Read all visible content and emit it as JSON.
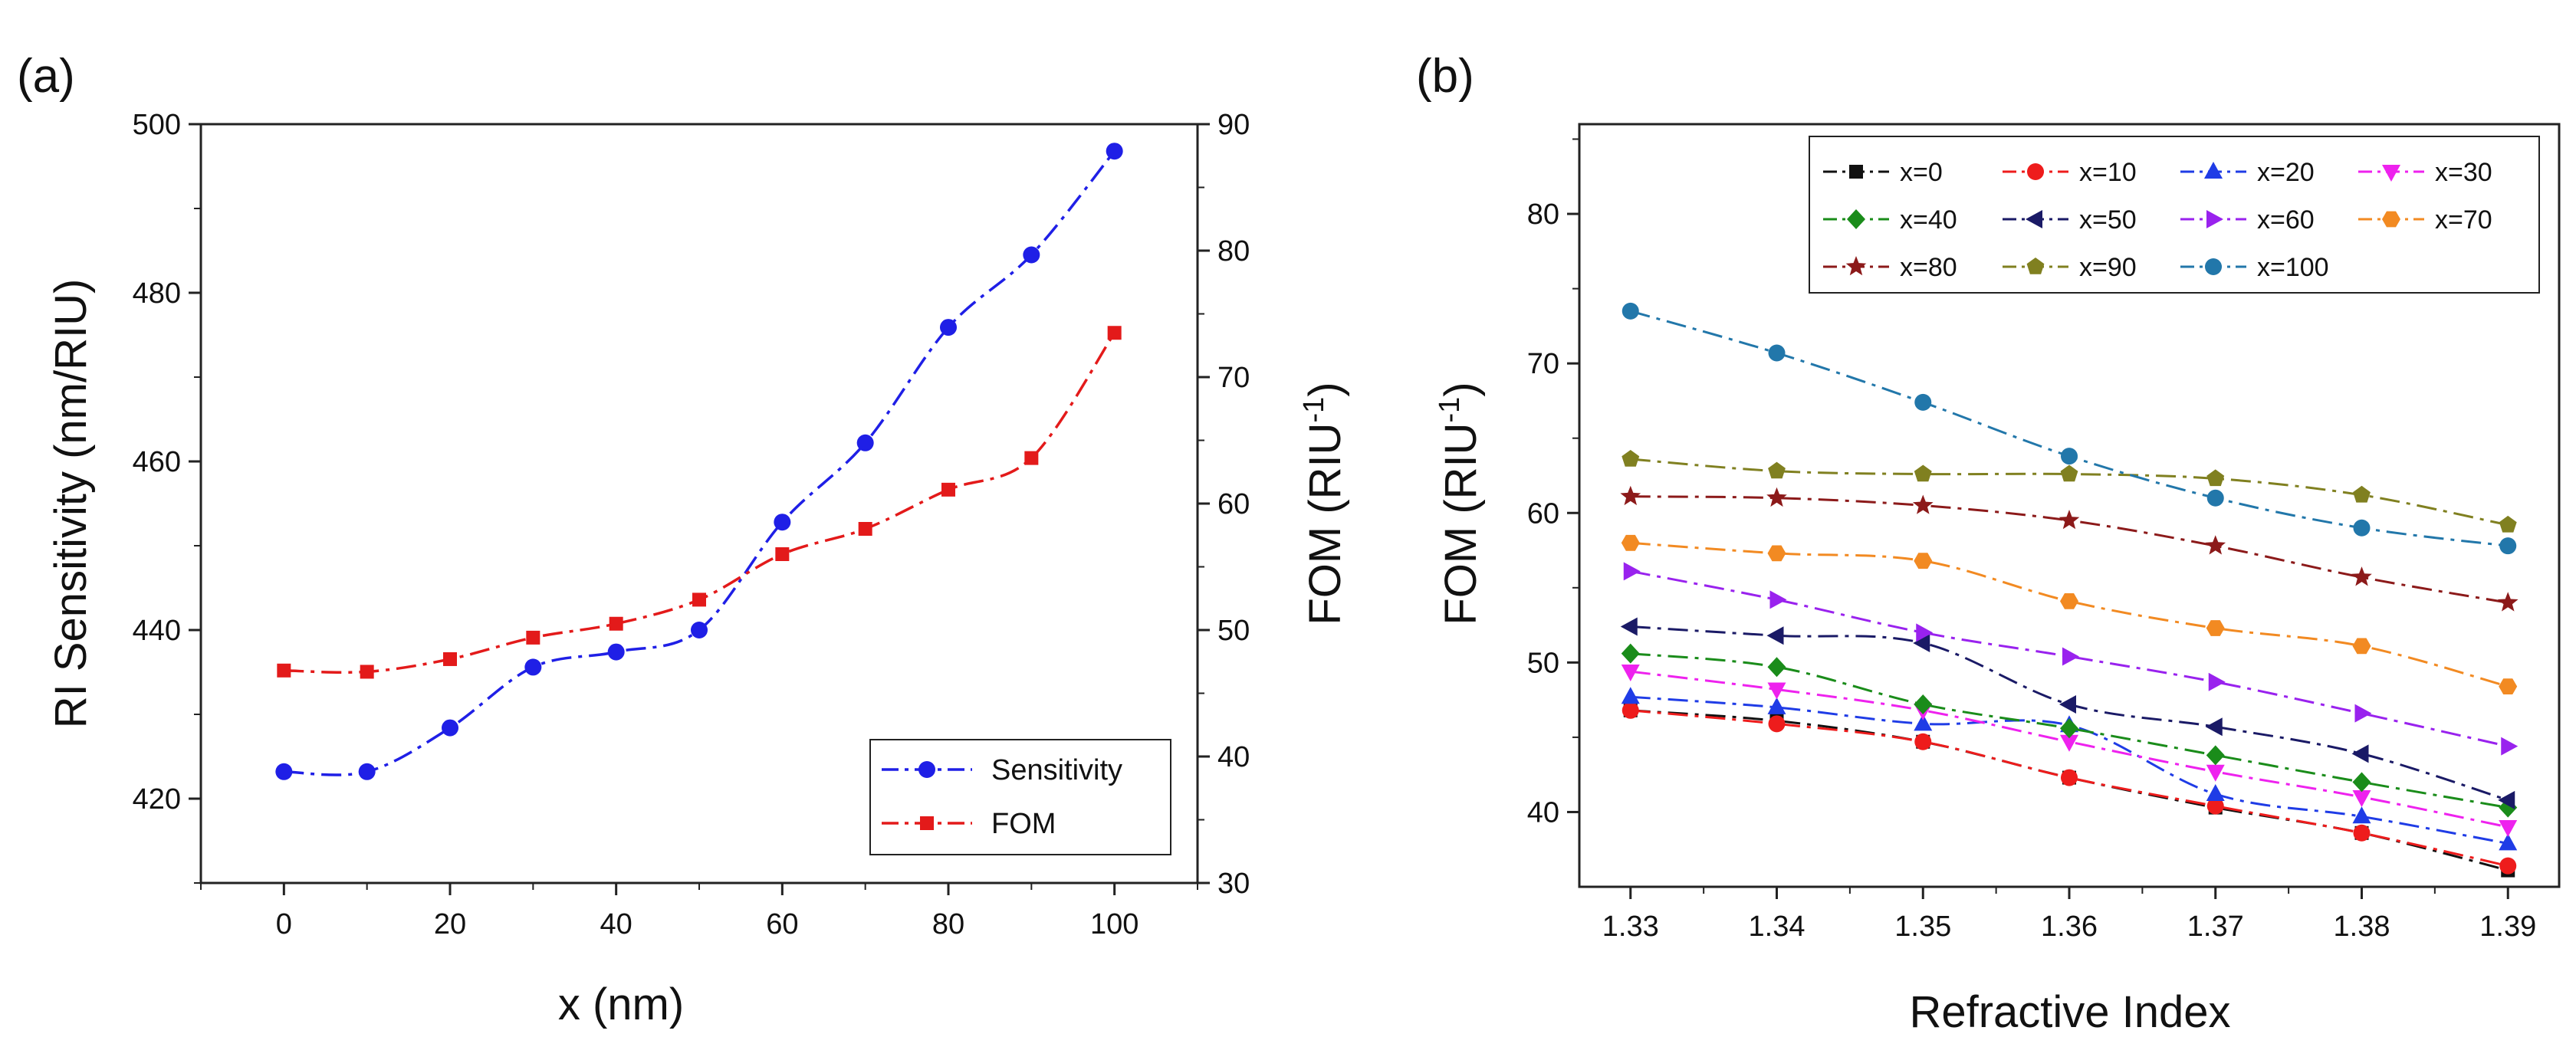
{
  "chart_data": [
    {
      "panel": "(a)",
      "type": "line",
      "x": [
        0,
        10,
        20,
        30,
        40,
        50,
        60,
        70,
        80,
        90,
        100
      ],
      "xlabel": "x (nm)",
      "xlim": [
        -10,
        110
      ],
      "xticks": [
        "0",
        "20",
        "40",
        "60",
        "80",
        "100"
      ],
      "ylabel": "RI Sensitivity (nm/RIU)",
      "ylim": [
        410,
        500
      ],
      "yticks": [
        "420",
        "440",
        "460",
        "480",
        "500"
      ],
      "y2label_main": "FOM (RIU",
      "y2label_sup": "-1",
      "y2label_end": ")",
      "y2lim": [
        30,
        90
      ],
      "y2ticks": [
        "30",
        "40",
        "50",
        "60",
        "70",
        "80",
        "90"
      ],
      "legend_position": "bottom-right",
      "series": [
        {
          "name": "Sensitivity",
          "axis": "left",
          "color": "#1f1fe6",
          "marker": "circle",
          "values": [
            423.2,
            423.2,
            428.4,
            435.6,
            437.4,
            440.0,
            452.8,
            462.2,
            475.9,
            484.5,
            496.8
          ]
        },
        {
          "name": "FOM",
          "axis": "right",
          "color": "#e31a1a",
          "marker": "square",
          "values": [
            46.8,
            46.7,
            47.7,
            49.4,
            50.5,
            52.4,
            56.0,
            58.0,
            61.1,
            63.6,
            73.5
          ]
        }
      ]
    },
    {
      "panel": "(b)",
      "type": "line",
      "x": [
        1.33,
        1.34,
        1.35,
        1.36,
        1.37,
        1.38,
        1.39
      ],
      "xticks": [
        "1.33",
        "1.34",
        "1.35",
        "1.36",
        "1.37",
        "1.38",
        "1.39"
      ],
      "xlabel": "Refractive Index",
      "xlim": [
        1.3265,
        1.3935
      ],
      "ylabel_main": "FOM (RIU",
      "ylabel_sup": "-1",
      "ylabel_end": ")",
      "ylim": [
        35,
        86
      ],
      "yticks": [
        "40",
        "50",
        "60",
        "70",
        "80"
      ],
      "legend_position": "top-right",
      "series": [
        {
          "name": "x=0",
          "color": "#111111",
          "marker": "square",
          "values": [
            46.8,
            46.1,
            44.7,
            42.3,
            40.3,
            38.6,
            36.1
          ]
        },
        {
          "name": "x=10",
          "color": "#ee1c1c",
          "marker": "circle",
          "values": [
            46.8,
            45.9,
            44.7,
            42.3,
            40.4,
            38.6,
            36.4
          ]
        },
        {
          "name": "x=20",
          "color": "#1f3ce6",
          "marker": "triangle-up",
          "values": [
            47.7,
            47.0,
            45.9,
            45.8,
            41.2,
            39.7,
            37.9
          ]
        },
        {
          "name": "x=30",
          "color": "#ee22ee",
          "marker": "triangle-down",
          "values": [
            49.4,
            48.2,
            46.8,
            44.7,
            42.7,
            41.0,
            39.0
          ]
        },
        {
          "name": "x=40",
          "color": "#1a8c1a",
          "marker": "diamond",
          "values": [
            50.6,
            49.7,
            47.2,
            45.6,
            43.8,
            42.0,
            40.3
          ]
        },
        {
          "name": "x=50",
          "color": "#1a1a66",
          "marker": "triangle-left",
          "values": [
            52.4,
            51.8,
            51.3,
            47.2,
            45.7,
            43.9,
            40.8
          ]
        },
        {
          "name": "x=60",
          "color": "#9922ee",
          "marker": "triangle-right",
          "values": [
            56.1,
            54.2,
            52.0,
            50.4,
            48.7,
            46.6,
            44.4
          ]
        },
        {
          "name": "x=70",
          "color": "#f28a22",
          "marker": "hexagon",
          "values": [
            58.0,
            57.3,
            56.8,
            54.1,
            52.3,
            51.1,
            48.4
          ]
        },
        {
          "name": "x=80",
          "color": "#8c1a1a",
          "marker": "star",
          "values": [
            61.1,
            61.0,
            60.5,
            59.5,
            57.8,
            55.7,
            54.0
          ]
        },
        {
          "name": "x=90",
          "color": "#808020",
          "marker": "pentagon",
          "values": [
            63.6,
            62.8,
            62.6,
            62.6,
            62.3,
            61.2,
            59.2
          ]
        },
        {
          "name": "x=100",
          "color": "#2277aa",
          "marker": "circle",
          "values": [
            73.5,
            70.7,
            67.4,
            63.8,
            61.0,
            59.0,
            57.8
          ]
        }
      ]
    }
  ]
}
